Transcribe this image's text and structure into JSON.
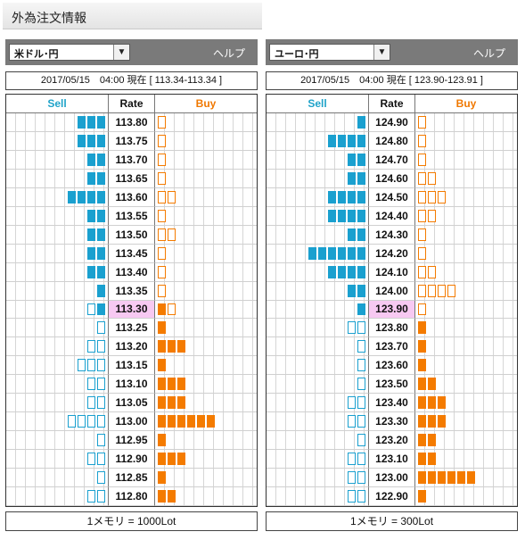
{
  "page": {
    "title": "外為注文情報"
  },
  "colors": {
    "sell_bar": "#1aa0cf",
    "buy_bar": "#f47b00",
    "current_rate_highlight": "#f7c9f2"
  },
  "panels": [
    {
      "pair": "米ドル･円",
      "help": "ヘルプ",
      "status": "2017/05/15　04:00 現在 [ 113.34-113.34 ]",
      "headers": {
        "sell": "Sell",
        "rate": "Rate",
        "buy": "Buy"
      },
      "footer": "1メモリ = 1000Lot",
      "rows": [
        {
          "rate": "113.80",
          "sell": 3,
          "sell_style": "filled",
          "buy": 1,
          "buy_style": "outline"
        },
        {
          "rate": "113.75",
          "sell": 3,
          "sell_style": "filled",
          "buy": 1,
          "buy_style": "outline"
        },
        {
          "rate": "113.70",
          "sell": 2,
          "sell_style": "filled",
          "buy": 1,
          "buy_style": "outline"
        },
        {
          "rate": "113.65",
          "sell": 2,
          "sell_style": "filled",
          "buy": 1,
          "buy_style": "outline"
        },
        {
          "rate": "113.60",
          "sell": 4,
          "sell_style": "filled",
          "buy": 2,
          "buy_style": "outline"
        },
        {
          "rate": "113.55",
          "sell": 2,
          "sell_style": "filled",
          "buy": 1,
          "buy_style": "outline"
        },
        {
          "rate": "113.50",
          "sell": 2,
          "sell_style": "filled",
          "buy": 2,
          "buy_style": "outline"
        },
        {
          "rate": "113.45",
          "sell": 2,
          "sell_style": "filled",
          "buy": 1,
          "buy_style": "outline"
        },
        {
          "rate": "113.40",
          "sell": 2,
          "sell_style": "filled",
          "buy": 1,
          "buy_style": "outline"
        },
        {
          "rate": "113.35",
          "sell": 1,
          "sell_style": "filled",
          "buy": 1,
          "buy_style": "outline"
        },
        {
          "rate": "113.30",
          "current": true,
          "sell": 2,
          "sell_style": "mixed",
          "buy": 2,
          "buy_style": "mixed"
        },
        {
          "rate": "113.25",
          "sell": 1,
          "sell_style": "outline",
          "buy": 1,
          "buy_style": "filled"
        },
        {
          "rate": "113.20",
          "sell": 2,
          "sell_style": "outline",
          "buy": 3,
          "buy_style": "filled"
        },
        {
          "rate": "113.15",
          "sell": 3,
          "sell_style": "outline",
          "buy": 1,
          "buy_style": "filled"
        },
        {
          "rate": "113.10",
          "sell": 2,
          "sell_style": "outline",
          "buy": 3,
          "buy_style": "filled"
        },
        {
          "rate": "113.05",
          "sell": 2,
          "sell_style": "outline",
          "buy": 3,
          "buy_style": "filled"
        },
        {
          "rate": "113.00",
          "sell": 4,
          "sell_style": "outline",
          "buy": 6,
          "buy_style": "filled"
        },
        {
          "rate": "112.95",
          "sell": 1,
          "sell_style": "outline",
          "buy": 1,
          "buy_style": "filled"
        },
        {
          "rate": "112.90",
          "sell": 2,
          "sell_style": "outline",
          "buy": 3,
          "buy_style": "filled"
        },
        {
          "rate": "112.85",
          "sell": 1,
          "sell_style": "outline",
          "buy": 1,
          "buy_style": "filled"
        },
        {
          "rate": "112.80",
          "sell": 2,
          "sell_style": "outline",
          "buy": 2,
          "buy_style": "filled"
        }
      ]
    },
    {
      "pair": "ユーロ･円",
      "help": "ヘルプ",
      "status": "2017/05/15　04:00 現在 [ 123.90-123.91 ]",
      "headers": {
        "sell": "Sell",
        "rate": "Rate",
        "buy": "Buy"
      },
      "footer": "1メモリ = 300Lot",
      "rows": [
        {
          "rate": "124.90",
          "sell": 1,
          "sell_style": "filled",
          "buy": 1,
          "buy_style": "outline"
        },
        {
          "rate": "124.80",
          "sell": 4,
          "sell_style": "filled",
          "buy": 1,
          "buy_style": "outline"
        },
        {
          "rate": "124.70",
          "sell": 2,
          "sell_style": "filled",
          "buy": 1,
          "buy_style": "outline"
        },
        {
          "rate": "124.60",
          "sell": 2,
          "sell_style": "filled",
          "buy": 2,
          "buy_style": "outline"
        },
        {
          "rate": "124.50",
          "sell": 4,
          "sell_style": "filled",
          "buy": 3,
          "buy_style": "outline"
        },
        {
          "rate": "124.40",
          "sell": 4,
          "sell_style": "filled",
          "buy": 2,
          "buy_style": "outline"
        },
        {
          "rate": "124.30",
          "sell": 2,
          "sell_style": "filled",
          "buy": 1,
          "buy_style": "outline"
        },
        {
          "rate": "124.20",
          "sell": 6,
          "sell_style": "filled",
          "buy": 1,
          "buy_style": "outline"
        },
        {
          "rate": "124.10",
          "sell": 4,
          "sell_style": "filled",
          "buy": 2,
          "buy_style": "outline"
        },
        {
          "rate": "124.00",
          "sell": 2,
          "sell_style": "filled",
          "buy": 4,
          "buy_style": "outline"
        },
        {
          "rate": "123.90",
          "current": true,
          "sell": 1,
          "sell_style": "filled",
          "buy": 1,
          "buy_style": "outline"
        },
        {
          "rate": "123.80",
          "sell": 2,
          "sell_style": "outline",
          "buy": 1,
          "buy_style": "filled"
        },
        {
          "rate": "123.70",
          "sell": 1,
          "sell_style": "outline",
          "buy": 1,
          "buy_style": "filled"
        },
        {
          "rate": "123.60",
          "sell": 1,
          "sell_style": "outline",
          "buy": 1,
          "buy_style": "filled"
        },
        {
          "rate": "123.50",
          "sell": 1,
          "sell_style": "outline",
          "buy": 2,
          "buy_style": "filled"
        },
        {
          "rate": "123.40",
          "sell": 2,
          "sell_style": "outline",
          "buy": 3,
          "buy_style": "filled"
        },
        {
          "rate": "123.30",
          "sell": 2,
          "sell_style": "outline",
          "buy": 3,
          "buy_style": "filled"
        },
        {
          "rate": "123.20",
          "sell": 1,
          "sell_style": "outline",
          "buy": 2,
          "buy_style": "filled"
        },
        {
          "rate": "123.10",
          "sell": 2,
          "sell_style": "outline",
          "buy": 2,
          "buy_style": "filled"
        },
        {
          "rate": "123.00",
          "sell": 2,
          "sell_style": "outline",
          "buy": 6,
          "buy_style": "filled"
        },
        {
          "rate": "122.90",
          "sell": 2,
          "sell_style": "outline",
          "buy": 1,
          "buy_style": "filled"
        }
      ]
    }
  ]
}
